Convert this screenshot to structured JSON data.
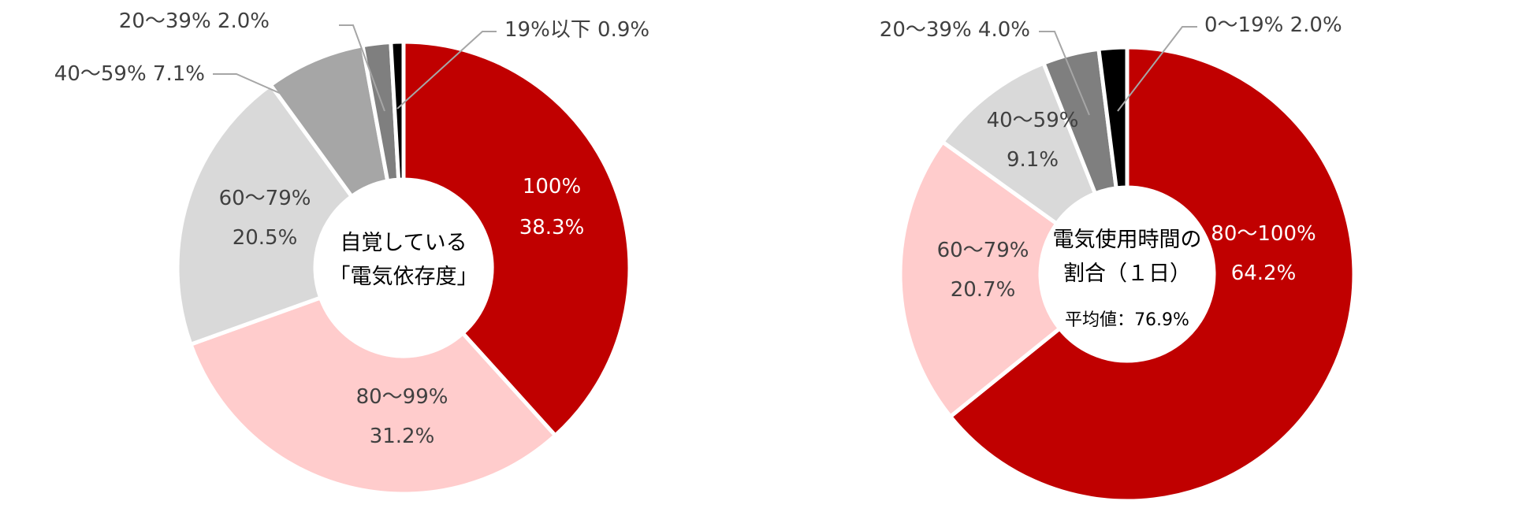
{
  "colors": {
    "red": "#C00000",
    "pink": "#FFCCCC",
    "light_gray": "#D9D9D9",
    "mid_gray": "#A6A6A6",
    "dark_gray": "#7F7F7F",
    "black": "#000000",
    "label_dark": "#404040",
    "label_white": "#FFFFFF",
    "leader": "#A6A6A6"
  },
  "chart_data": [
    {
      "type": "pie",
      "variant": "donut",
      "title": "",
      "center_text": [
        "自覚している",
        "「電気依存度」"
      ],
      "slices": [
        {
          "range": "100%",
          "value": 38.3,
          "value_label": "38.3%",
          "color": "red",
          "label_color": "label_white",
          "placement": "inside"
        },
        {
          "range": "80〜99%",
          "value": 31.2,
          "value_label": "31.2%",
          "color": "pink",
          "label_color": "label_dark",
          "placement": "inside"
        },
        {
          "range": "60〜79%",
          "value": 20.5,
          "value_label": "20.5%",
          "color": "light_gray",
          "label_color": "label_dark",
          "placement": "inside"
        },
        {
          "range": "40〜59%",
          "value": 7.1,
          "value_label": "7.1%",
          "color": "mid_gray",
          "label_color": "label_dark",
          "placement": "outside"
        },
        {
          "range": "20〜39%",
          "value": 2.0,
          "value_label": "2.0%",
          "color": "dark_gray",
          "label_color": "label_dark",
          "placement": "outside"
        },
        {
          "range": "19%以下",
          "value": 0.9,
          "value_label": "0.9%",
          "color": "black",
          "label_color": "label_dark",
          "placement": "outside"
        }
      ]
    },
    {
      "type": "pie",
      "variant": "donut",
      "title": "",
      "center_text": [
        "電気使用時間の",
        "割合（１日）"
      ],
      "average": {
        "label": "平均値：",
        "value": "76.9%"
      },
      "slices": [
        {
          "range": "80〜100%",
          "value": 64.2,
          "value_label": "64.2%",
          "color": "red",
          "label_color": "label_white",
          "placement": "inside"
        },
        {
          "range": "60〜79%",
          "value": 20.7,
          "value_label": "20.7%",
          "color": "pink",
          "label_color": "label_dark",
          "placement": "inside"
        },
        {
          "range": "40〜59%",
          "value": 9.1,
          "value_label": "9.1%",
          "color": "light_gray",
          "label_color": "label_dark",
          "placement": "inside"
        },
        {
          "range": "20〜39%",
          "value": 4.0,
          "value_label": "4.0%",
          "color": "dark_gray",
          "label_color": "label_dark",
          "placement": "outside"
        },
        {
          "range": "0〜19%",
          "value": 2.0,
          "value_label": "2.0%",
          "color": "black",
          "label_color": "label_dark",
          "placement": "outside"
        }
      ]
    }
  ]
}
